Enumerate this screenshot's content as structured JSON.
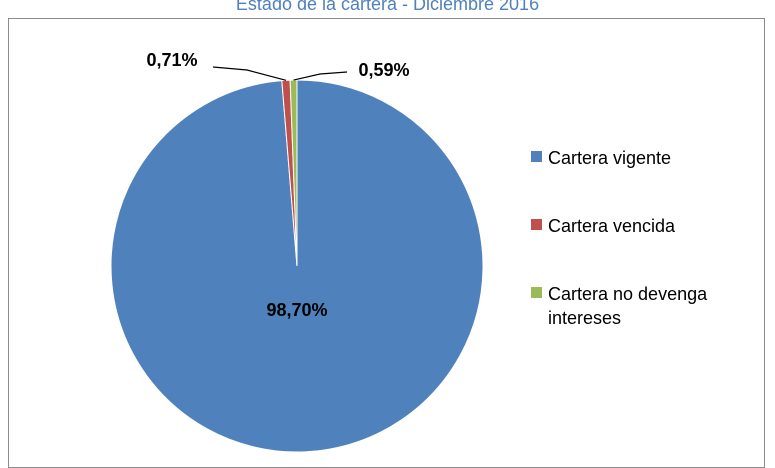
{
  "chart_data": {
    "type": "pie",
    "title": "Estado de la cartera - Diciembre 2016",
    "start_angle_deg": 0,
    "direction": "clockwise",
    "slices": [
      {
        "name": "Cartera vigente",
        "value": 98.7,
        "label": "98,70%",
        "color": "#4F81BD"
      },
      {
        "name": "Cartera vencida",
        "value": 0.71,
        "label": "0,71%",
        "color": "#C0504D"
      },
      {
        "name": "Cartera no devenga intereses",
        "value": 0.59,
        "label": "0,59%",
        "color": "#9BBB59"
      }
    ],
    "legend": {
      "placement": "right",
      "entries": [
        {
          "lines": [
            "Cartera vigente"
          ],
          "color": "#4F81BD"
        },
        {
          "lines": [
            "Cartera vencida"
          ],
          "color": "#C0504D"
        },
        {
          "lines": [
            "Cartera no devenga",
            "intereses"
          ],
          "color": "#9BBB59"
        }
      ]
    }
  }
}
